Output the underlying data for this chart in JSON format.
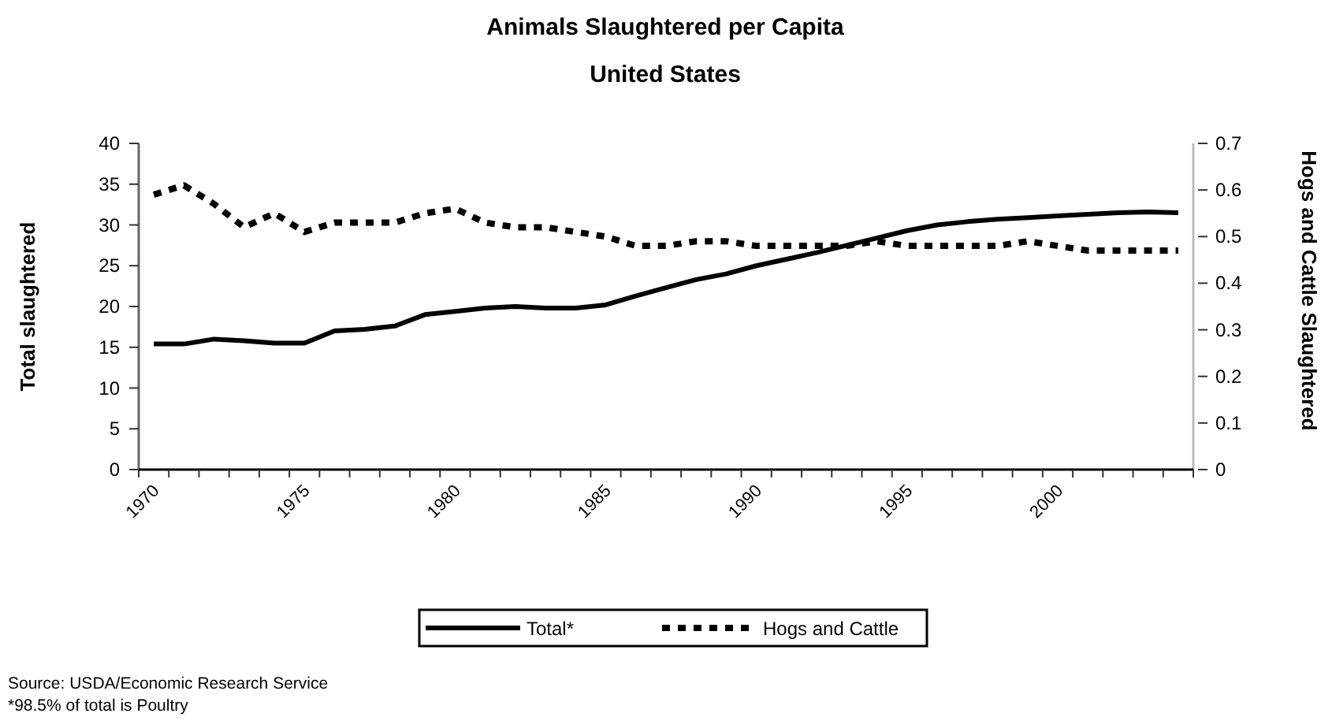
{
  "chart_data": {
    "type": "line",
    "title": "Animals Slaughtered per Capita",
    "subtitle": "United States",
    "ylabel": "Total slaughtered",
    "y2label": "Hogs and Cattle Slaughtered",
    "categories": [
      "1970",
      null,
      null,
      null,
      null,
      "1975",
      null,
      null,
      null,
      null,
      "1980",
      null,
      null,
      null,
      null,
      "1985",
      null,
      null,
      null,
      null,
      "1990",
      null,
      null,
      null,
      null,
      "1995",
      null,
      null,
      null,
      null,
      "2000",
      null,
      null,
      null,
      null
    ],
    "series": [
      {
        "name": "Total*",
        "color": "#000000",
        "line_style": "solid",
        "values": [
          15.4,
          15.4,
          16.0,
          15.8,
          15.5,
          15.5,
          17.0,
          17.2,
          17.6,
          19.0,
          19.4,
          19.8,
          20.0,
          19.8,
          19.8,
          20.2,
          21.3,
          22.3,
          23.3,
          24.0,
          25.0,
          25.8,
          26.6,
          27.5,
          28.4,
          29.3,
          30.0,
          30.4,
          30.7,
          30.9,
          31.1,
          31.3,
          31.5,
          31.6,
          31.5
        ]
      },
      {
        "name": "Hogs and Cattle",
        "color": "#000000",
        "line_style": "dashed",
        "axis": "y2",
        "values": [
          0.59,
          0.61,
          0.57,
          0.52,
          0.55,
          0.51,
          0.53,
          0.53,
          0.53,
          0.55,
          0.56,
          0.53,
          0.52,
          0.52,
          0.51,
          0.5,
          0.48,
          0.48,
          0.49,
          0.49,
          0.48,
          0.48,
          0.48,
          0.48,
          0.49,
          0.48,
          0.48,
          0.48,
          0.48,
          0.49,
          0.48,
          0.47,
          0.47,
          0.47,
          0.47
        ]
      }
    ],
    "ylim": [
      0,
      40
    ],
    "yticks": [
      0,
      5,
      10,
      15,
      20,
      25,
      30,
      35,
      40
    ],
    "y2lim": [
      0,
      0.7
    ],
    "y2ticks": [
      0,
      0.1,
      0.2,
      0.3,
      0.4,
      0.5,
      0.6,
      0.7
    ],
    "marker": "none",
    "grid": false,
    "legend": "bottom",
    "annotations": [
      "Source: USDA/Economic Research Service",
      "*98.5% of total is Poultry"
    ]
  }
}
